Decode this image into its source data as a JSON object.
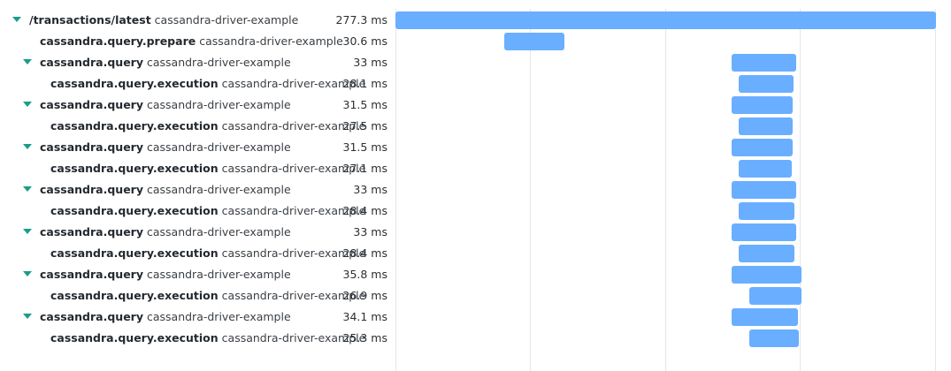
{
  "trace": {
    "rows": [
      {
        "operation": "/transactions/latest",
        "service": "cassandra-driver-example",
        "duration_label": "277.3 ms",
        "depth": 0,
        "has_toggle": true,
        "start_ms": 0.0,
        "duration_ms": 277.3
      },
      {
        "operation": "cassandra.query.prepare",
        "service": "cassandra-driver-example",
        "duration_label": "30.6 ms",
        "depth": 1,
        "has_toggle": false,
        "start_ms": 55.9,
        "duration_ms": 30.6
      },
      {
        "operation": "cassandra.query",
        "service": "cassandra-driver-example",
        "duration_label": "33 ms",
        "depth": 1,
        "has_toggle": true,
        "start_ms": 172.5,
        "duration_ms": 33.0
      },
      {
        "operation": "cassandra.query.execution",
        "service": "cassandra-driver-example",
        "duration_label": "28.1 ms",
        "depth": 2,
        "has_toggle": false,
        "start_ms": 176.1,
        "duration_ms": 28.1
      },
      {
        "operation": "cassandra.query",
        "service": "cassandra-driver-example",
        "duration_label": "31.5 ms",
        "depth": 1,
        "has_toggle": true,
        "start_ms": 172.5,
        "duration_ms": 31.5
      },
      {
        "operation": "cassandra.query.execution",
        "service": "cassandra-driver-example",
        "duration_label": "27.5 ms",
        "depth": 2,
        "has_toggle": false,
        "start_ms": 176.1,
        "duration_ms": 27.5
      },
      {
        "operation": "cassandra.query",
        "service": "cassandra-driver-example",
        "duration_label": "31.5 ms",
        "depth": 1,
        "has_toggle": true,
        "start_ms": 172.5,
        "duration_ms": 31.5
      },
      {
        "operation": "cassandra.query.execution",
        "service": "cassandra-driver-example",
        "duration_label": "27.1 ms",
        "depth": 2,
        "has_toggle": false,
        "start_ms": 176.1,
        "duration_ms": 27.1
      },
      {
        "operation": "cassandra.query",
        "service": "cassandra-driver-example",
        "duration_label": "33 ms",
        "depth": 1,
        "has_toggle": true,
        "start_ms": 172.5,
        "duration_ms": 33.0
      },
      {
        "operation": "cassandra.query.execution",
        "service": "cassandra-driver-example",
        "duration_label": "28.4 ms",
        "depth": 2,
        "has_toggle": false,
        "start_ms": 176.1,
        "duration_ms": 28.4
      },
      {
        "operation": "cassandra.query",
        "service": "cassandra-driver-example",
        "duration_label": "33 ms",
        "depth": 1,
        "has_toggle": true,
        "start_ms": 172.5,
        "duration_ms": 33.0
      },
      {
        "operation": "cassandra.query.execution",
        "service": "cassandra-driver-example",
        "duration_label": "28.4 ms",
        "depth": 2,
        "has_toggle": false,
        "start_ms": 176.1,
        "duration_ms": 28.4
      },
      {
        "operation": "cassandra.query",
        "service": "cassandra-driver-example",
        "duration_label": "35.8 ms",
        "depth": 1,
        "has_toggle": true,
        "start_ms": 172.5,
        "duration_ms": 35.8
      },
      {
        "operation": "cassandra.query.execution",
        "service": "cassandra-driver-example",
        "duration_label": "26.9 ms",
        "depth": 2,
        "has_toggle": false,
        "start_ms": 181.5,
        "duration_ms": 26.9
      },
      {
        "operation": "cassandra.query",
        "service": "cassandra-driver-example",
        "duration_label": "34.1 ms",
        "depth": 1,
        "has_toggle": true,
        "start_ms": 172.5,
        "duration_ms": 34.1
      },
      {
        "operation": "cassandra.query.execution",
        "service": "cassandra-driver-example",
        "duration_label": "25.3 ms",
        "depth": 2,
        "has_toggle": false,
        "start_ms": 181.5,
        "duration_ms": 25.3
      }
    ],
    "total_ms": 277.3,
    "bar_color": "#6aaeff",
    "toggle_color": "#1a9c8c",
    "toggle_icon": "caret-down-icon"
  }
}
